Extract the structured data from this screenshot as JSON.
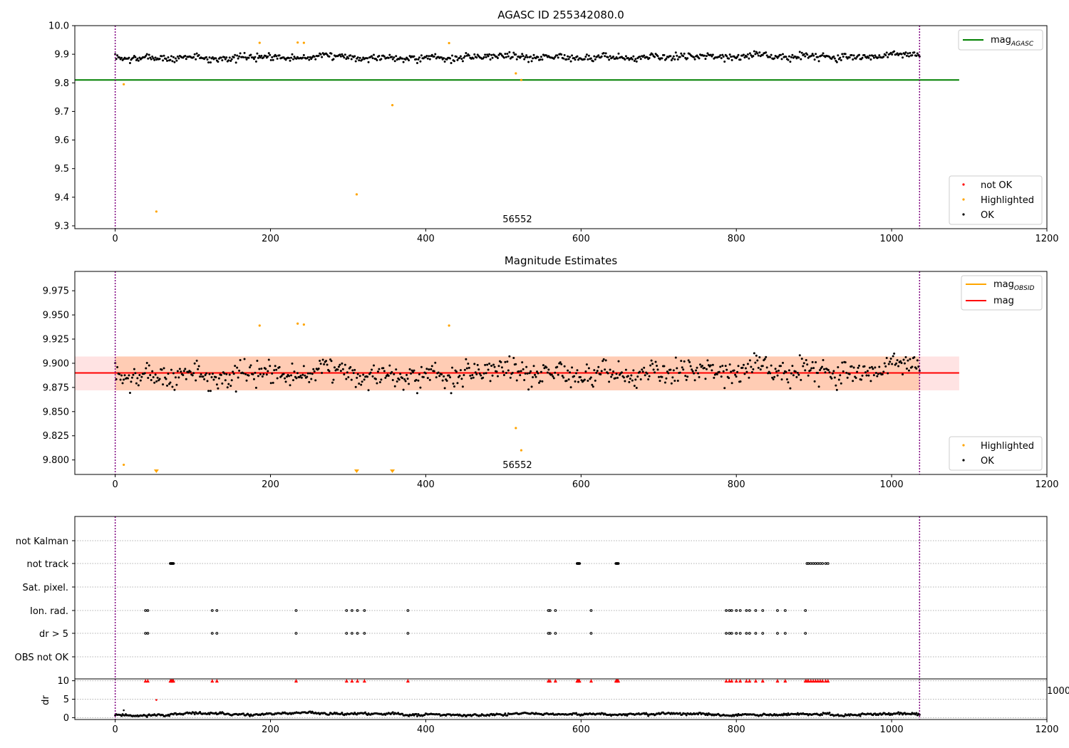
{
  "colors": {
    "ok": "#000000",
    "highlighted": "#ffa500",
    "not_ok": "#ff0000",
    "agasc_line": "#008000",
    "mag_line": "#ff0000",
    "mag_obsid_line": "#ffa500",
    "band_fill": "#ff9999",
    "obsid_band_fill": "#ffb07a",
    "obsid_bound": "#800080",
    "grid": "#b0b0b0"
  },
  "chart_data": [
    {
      "type": "scatter",
      "title": "AGASC ID 255342080.0",
      "xlim": [
        -52,
        1200
      ],
      "ylim": [
        9.29,
        10.0
      ],
      "xticks": [
        0,
        200,
        400,
        600,
        800,
        1000,
        1200
      ],
      "yticks": [
        9.3,
        9.4,
        9.5,
        9.6,
        9.7,
        9.8,
        9.9,
        10.0
      ],
      "ytick_labels": [
        "9.3",
        "9.4",
        "9.5",
        "9.6",
        "9.7",
        "9.8",
        "9.9",
        "10.0"
      ],
      "obsid_bounds": [
        0,
        1036
      ],
      "obsid_label": {
        "text": "56552",
        "x": 518
      },
      "agasc_mag": {
        "value": 9.81,
        "x_range": [
          -52,
          1087
        ]
      },
      "legend_lines": [
        {
          "name": "mag",
          "subscript": "AGASC",
          "color": "#008000"
        }
      ],
      "legend_markers": [
        {
          "name": "not OK",
          "color": "#ff0000"
        },
        {
          "name": "Highlighted",
          "color": "#ffa500"
        },
        {
          "name": "OK",
          "color": "#000000"
        }
      ],
      "legend_positions": [
        "upper right",
        "lower right"
      ],
      "ok_trend": {
        "x_range": [
          0,
          1036
        ],
        "mean": 9.89,
        "wander_amplitude": 0.012,
        "scatter": 0.011,
        "n_points": 760,
        "seed": 7
      },
      "highlighted": {
        "x": [
          11,
          53,
          186,
          235,
          243,
          311,
          357,
          430,
          516,
          523
        ],
        "y": [
          9.795,
          9.35,
          9.94,
          9.941,
          9.94,
          9.41,
          9.722,
          9.939,
          9.833,
          9.81
        ]
      },
      "not_ok": {
        "x": [],
        "y": []
      }
    },
    {
      "type": "scatter",
      "title": "Magnitude Estimates",
      "xlim": [
        -52,
        1200
      ],
      "ylim": [
        9.785,
        9.995
      ],
      "xticks": [
        0,
        200,
        400,
        600,
        800,
        1000,
        1200
      ],
      "yticks": [
        9.8,
        9.825,
        9.85,
        9.875,
        9.9,
        9.925,
        9.95,
        9.975
      ],
      "ytick_labels": [
        "9.800",
        "9.825",
        "9.850",
        "9.875",
        "9.900",
        "9.925",
        "9.950",
        "9.975"
      ],
      "obsid_bounds": [
        0,
        1036
      ],
      "obsid_label": {
        "text": "56552",
        "x": 518
      },
      "mag": {
        "value": 9.89,
        "x_range": [
          -52,
          1087
        ]
      },
      "mag_band": {
        "low": 9.872,
        "high": 9.907,
        "x_range": [
          -52,
          1087
        ]
      },
      "mag_obsid": {
        "value": 9.89,
        "band_low": 9.872,
        "band_high": 9.907,
        "x_range": [
          0,
          1036
        ]
      },
      "legend_lines": [
        {
          "name": "mag",
          "subscript": "OBSID",
          "color": "#ffa500"
        },
        {
          "name": "mag",
          "subscript": "",
          "color": "#ff0000"
        }
      ],
      "legend_markers": [
        {
          "name": "Highlighted",
          "color": "#ffa500"
        },
        {
          "name": "OK",
          "color": "#000000"
        }
      ],
      "legend_positions": [
        "upper right",
        "lower right"
      ],
      "ok_trend": {
        "x_range": [
          0,
          1036
        ],
        "mean": 9.89,
        "wander_amplitude": 0.012,
        "scatter": 0.011,
        "n_points": 760,
        "seed": 7
      },
      "highlighted": {
        "x": [
          11,
          186,
          235,
          243,
          430,
          516,
          523
        ],
        "y": [
          9.795,
          9.939,
          9.941,
          9.94,
          9.939,
          9.833,
          9.81
        ]
      },
      "highlighted_below_range_x": [
        53,
        311,
        357
      ]
    },
    {
      "type": "scatter",
      "title": "",
      "xlim": [
        -52,
        1200
      ],
      "xticks": [
        0,
        200,
        400,
        600,
        800,
        1000,
        1200
      ],
      "obsid_bounds": [
        0,
        1036
      ],
      "flag_rows": [
        "not Kalman",
        "not track",
        "Sat. pixel.",
        "Ion. rad.",
        "dr > 5",
        "OBS not OK"
      ],
      "flags": {
        "not Kalman": [],
        "not track": [
          71,
          72,
          73,
          74,
          75,
          595,
          596,
          597,
          598,
          645,
          646,
          647,
          648,
          891,
          893,
          896,
          899,
          902,
          905,
          908,
          911,
          915,
          918
        ],
        "Sat. pixel.": [],
        "Ion. rad.": [
          39,
          42,
          125,
          131,
          233,
          298,
          305,
          312,
          321,
          377,
          558,
          560,
          567,
          613,
          787,
          791,
          794,
          800,
          805,
          813,
          817,
          825,
          834,
          853,
          863,
          889
        ],
        "dr > 5": [
          39,
          42,
          125,
          131,
          233,
          298,
          305,
          312,
          321,
          377,
          558,
          560,
          567,
          613,
          787,
          791,
          794,
          800,
          805,
          813,
          817,
          825,
          834,
          853,
          863,
          889
        ],
        "OBS not OK": []
      }
    },
    {
      "type": "scatter",
      "title": "",
      "ylabel": "dr",
      "xlim": [
        -52,
        1200
      ],
      "ylim": [
        -0.5,
        10.5
      ],
      "xticks": [
        0,
        200,
        400,
        600,
        800,
        1000,
        1200
      ],
      "xtick_labels": [
        "0",
        "200",
        "400",
        "600",
        "800",
        "1000",
        "1200"
      ],
      "yticks": [
        0,
        5,
        10
      ],
      "obsid_bounds": [
        0,
        1036
      ],
      "dr_trend": {
        "x_range": [
          0,
          1036
        ],
        "mean": 0.9,
        "wander_amplitude": 0.45,
        "scatter": 0.25,
        "n_points": 760,
        "seed": 11
      },
      "outliers": {
        "x": [
          11,
          53
        ],
        "y": [
          2.0,
          4.8
        ]
      },
      "clipped_x": [
        39,
        42,
        71,
        72,
        73,
        74,
        75,
        125,
        131,
        233,
        298,
        305,
        312,
        321,
        377,
        558,
        560,
        567,
        595,
        596,
        597,
        598,
        613,
        645,
        646,
        647,
        648,
        787,
        791,
        794,
        800,
        805,
        813,
        817,
        825,
        834,
        853,
        863,
        889,
        891,
        893,
        896,
        899,
        902,
        905,
        908,
        911,
        915,
        918
      ],
      "clipped_y": 10,
      "stray_tick_label": "1000"
    }
  ]
}
